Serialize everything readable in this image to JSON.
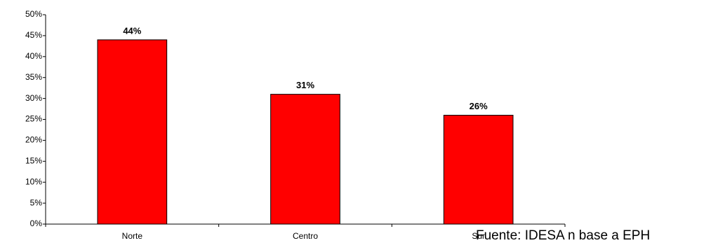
{
  "chart_data": {
    "type": "bar",
    "categories": [
      "Norte",
      "Centro",
      "Sur"
    ],
    "values": [
      44,
      31,
      26
    ],
    "value_labels": [
      "44%",
      "31%",
      "26%"
    ],
    "color": "#ff0000",
    "ylim": [
      0,
      50
    ],
    "yticks": [
      {
        "value": 0,
        "label": "0%"
      },
      {
        "value": 5,
        "label": "5%"
      },
      {
        "value": 10,
        "label": "10%"
      },
      {
        "value": 15,
        "label": "15%"
      },
      {
        "value": 20,
        "label": "20%"
      },
      {
        "value": 25,
        "label": "25%"
      },
      {
        "value": 30,
        "label": "30%"
      },
      {
        "value": 35,
        "label": "35%"
      },
      {
        "value": 40,
        "label": "40%"
      },
      {
        "value": 45,
        "label": "45%"
      },
      {
        "value": 50,
        "label": "50%"
      }
    ],
    "grid": false,
    "source": "Fuente: IDESA n base a EPH"
  }
}
